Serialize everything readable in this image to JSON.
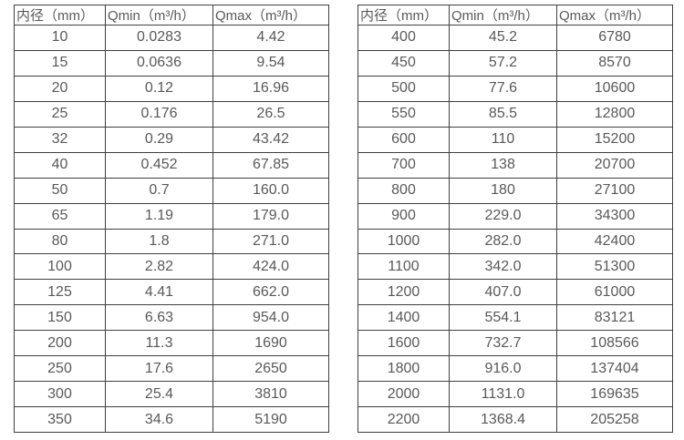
{
  "colors": {
    "background": "#ffffff",
    "border": "#3f3f3f",
    "text": "#595959"
  },
  "chart_data": [
    {
      "type": "table",
      "title": "",
      "columns": [
        "内径（mm）",
        "Qmin（m³/h）",
        "Qmax（m³/h）"
      ],
      "rows": [
        [
          "10",
          "0.0283",
          "4.42"
        ],
        [
          "15",
          "0.0636",
          "9.54"
        ],
        [
          "20",
          "0.12",
          "16.96"
        ],
        [
          "25",
          "0.176",
          "26.5"
        ],
        [
          "32",
          "0.29",
          "43.42"
        ],
        [
          "40",
          "0.452",
          "67.85"
        ],
        [
          "50",
          "0.7",
          "160.0"
        ],
        [
          "65",
          "1.19",
          "179.0"
        ],
        [
          "80",
          "1.8",
          "271.0"
        ],
        [
          "100",
          "2.82",
          "424.0"
        ],
        [
          "125",
          "4.41",
          "662.0"
        ],
        [
          "150",
          "6.63",
          "954.0"
        ],
        [
          "200",
          "11.3",
          "1690"
        ],
        [
          "250",
          "17.6",
          "2650"
        ],
        [
          "300",
          "25.4",
          "3810"
        ],
        [
          "350",
          "34.6",
          "5190"
        ]
      ]
    },
    {
      "type": "table",
      "title": "",
      "columns": [
        "内径（mm）",
        "Qmin（m³/h）",
        "Qmax（m³/h）"
      ],
      "rows": [
        [
          "400",
          "45.2",
          "6780"
        ],
        [
          "450",
          "57.2",
          "8570"
        ],
        [
          "500",
          "77.6",
          "10600"
        ],
        [
          "550",
          "85.5",
          "12800"
        ],
        [
          "600",
          "110",
          "15200"
        ],
        [
          "700",
          "138",
          "20700"
        ],
        [
          "800",
          "180",
          "27100"
        ],
        [
          "900",
          "229.0",
          "34300"
        ],
        [
          "1000",
          "282.0",
          "42400"
        ],
        [
          "1100",
          "342.0",
          "51300"
        ],
        [
          "1200",
          "407.0",
          "61000"
        ],
        [
          "1400",
          "554.1",
          "83121"
        ],
        [
          "1600",
          "732.7",
          "108566"
        ],
        [
          "1800",
          "916.0",
          "137404"
        ],
        [
          "2000",
          "1131.0",
          "169635"
        ],
        [
          "2200",
          "1368.4",
          "205258"
        ]
      ]
    }
  ]
}
